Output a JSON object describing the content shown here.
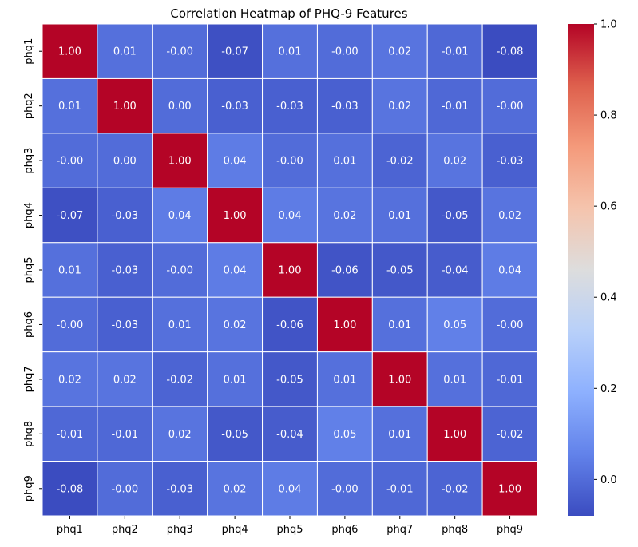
{
  "chart_data": {
    "type": "heatmap",
    "title": "Correlation Heatmap of PHQ-9 Features",
    "xlabel": "",
    "ylabel": "",
    "x_labels": [
      "phq1",
      "phq2",
      "phq3",
      "phq4",
      "phq5",
      "phq6",
      "phq7",
      "phq8",
      "phq9"
    ],
    "y_labels": [
      "phq1",
      "phq2",
      "phq3",
      "phq4",
      "phq5",
      "phq6",
      "phq7",
      "phq8",
      "phq9"
    ],
    "values": [
      [
        1.0,
        0.01,
        -0.0,
        -0.07,
        0.01,
        -0.0,
        0.02,
        -0.01,
        -0.08
      ],
      [
        0.01,
        1.0,
        0.0,
        -0.03,
        -0.03,
        -0.03,
        0.02,
        -0.01,
        -0.0
      ],
      [
        -0.0,
        0.0,
        1.0,
        0.04,
        -0.0,
        0.01,
        -0.02,
        0.02,
        -0.03
      ],
      [
        -0.07,
        -0.03,
        0.04,
        1.0,
        0.04,
        0.02,
        0.01,
        -0.05,
        0.02
      ],
      [
        0.01,
        -0.03,
        -0.0,
        0.04,
        1.0,
        -0.06,
        -0.05,
        -0.04,
        0.04
      ],
      [
        -0.0,
        -0.03,
        0.01,
        0.02,
        -0.06,
        1.0,
        0.01,
        0.05,
        -0.0
      ],
      [
        0.02,
        0.02,
        -0.02,
        0.01,
        -0.05,
        0.01,
        1.0,
        0.01,
        -0.01
      ],
      [
        -0.01,
        -0.01,
        0.02,
        -0.05,
        -0.04,
        0.05,
        0.01,
        1.0,
        -0.02
      ],
      [
        -0.08,
        -0.0,
        -0.03,
        0.02,
        0.04,
        -0.0,
        -0.01,
        -0.02,
        1.0
      ]
    ],
    "cell_labels": [
      [
        "1.00",
        "0.01",
        "-0.00",
        "-0.07",
        "0.01",
        "-0.00",
        "0.02",
        "-0.01",
        "-0.08"
      ],
      [
        "0.01",
        "1.00",
        "0.00",
        "-0.03",
        "-0.03",
        "-0.03",
        "0.02",
        "-0.01",
        "-0.00"
      ],
      [
        "-0.00",
        "0.00",
        "1.00",
        "0.04",
        "-0.00",
        "0.01",
        "-0.02",
        "0.02",
        "-0.03"
      ],
      [
        "-0.07",
        "-0.03",
        "0.04",
        "1.00",
        "0.04",
        "0.02",
        "0.01",
        "-0.05",
        "0.02"
      ],
      [
        "0.01",
        "-0.03",
        "-0.00",
        "0.04",
        "1.00",
        "-0.06",
        "-0.05",
        "-0.04",
        "0.04"
      ],
      [
        "-0.00",
        "-0.03",
        "0.01",
        "0.02",
        "-0.06",
        "1.00",
        "0.01",
        "0.05",
        "-0.00"
      ],
      [
        "0.02",
        "0.02",
        "-0.02",
        "0.01",
        "-0.05",
        "0.01",
        "1.00",
        "0.01",
        "-0.01"
      ],
      [
        "-0.01",
        "-0.01",
        "0.02",
        "-0.05",
        "-0.04",
        "0.05",
        "0.01",
        "1.00",
        "-0.02"
      ],
      [
        "-0.08",
        "-0.00",
        "-0.03",
        "0.02",
        "0.04",
        "-0.00",
        "-0.01",
        "-0.02",
        "1.00"
      ]
    ],
    "colormap": "coolwarm",
    "color_range": [
      -0.08,
      1.0
    ],
    "colorbar_ticks": [
      0.0,
      0.2,
      0.4,
      0.6,
      0.8,
      1.0
    ],
    "colorbar_tick_labels": [
      "0.0",
      "0.2",
      "0.4",
      "0.6",
      "0.8",
      "1.0"
    ],
    "cell_border_color": "#ffffff",
    "label_color": "#ffffff"
  }
}
